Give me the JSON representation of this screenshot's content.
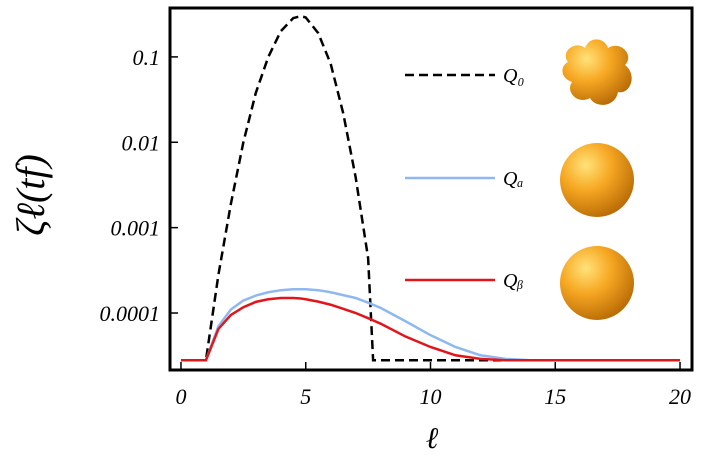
{
  "chart_data": {
    "type": "line",
    "ylabel": "ζℓ(tf)",
    "xlabel": "ℓ",
    "log_y": true,
    "xlim": [
      -0.44,
      20.48
    ],
    "xticks": [
      0,
      5,
      10,
      15,
      20
    ],
    "ylim": [
      2.15e-05,
      0.374
    ],
    "yticks": [
      0.1,
      0.01,
      0.001,
      0.0001
    ],
    "x": [
      0,
      1,
      1.5,
      2,
      2.5,
      3,
      3.5,
      4,
      4.5,
      4.8,
      5,
      5.5,
      6,
      6.5,
      7,
      7.5,
      7.7,
      8,
      9,
      10,
      11,
      12,
      13,
      14,
      20
    ],
    "series": [
      {
        "name": "Q₀",
        "color": "#000000",
        "dashed": true,
        "values": [
          2.8e-05,
          2.8e-05,
          0.00028,
          0.0019,
          0.01,
          0.038,
          0.1,
          0.2,
          0.285,
          0.3,
          0.29,
          0.19,
          0.083,
          0.022,
          0.0039,
          0.00044,
          2.8e-05,
          2.8e-05,
          2.8e-05,
          2.8e-05,
          2.8e-05,
          2.8e-05,
          2.8e-05,
          2.8e-05,
          2.8e-05
        ]
      },
      {
        "name": "Qₐ",
        "color": "#8fb8f0",
        "dashed": false,
        "values": [
          2.8e-05,
          2.8e-05,
          7e-05,
          0.00011,
          0.00014,
          0.00016,
          0.000175,
          0.000185,
          0.00019,
          0.00019,
          0.00019,
          0.000185,
          0.000175,
          0.000162,
          0.00015,
          0.000132,
          0.000125,
          0.000115,
          8e-05,
          5.5e-05,
          4e-05,
          3.2e-05,
          2.9e-05,
          2.8e-05,
          2.8e-05
        ]
      },
      {
        "name": "Qᵦ",
        "color": "#e0161b",
        "dashed": false,
        "values": [
          2.8e-05,
          2.8e-05,
          6.5e-05,
          9.5e-05,
          0.000117,
          0.000135,
          0.000145,
          0.00015,
          0.00015,
          0.000148,
          0.000145,
          0.000136,
          0.000125,
          0.000112,
          0.0001,
          8.7e-05,
          8.2e-05,
          7.5e-05,
          5.3e-05,
          4e-05,
          3.2e-05,
          2.9e-05,
          2.8e-05,
          2.8e-05,
          2.8e-05
        ]
      }
    ]
  }
}
